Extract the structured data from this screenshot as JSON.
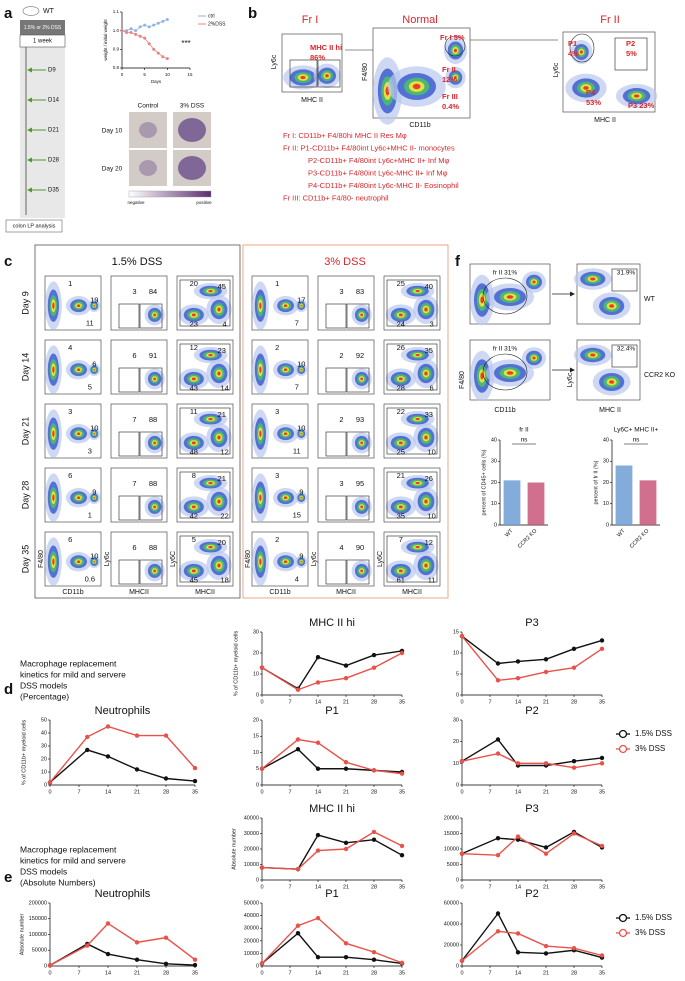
{
  "panel_labels": [
    "a",
    "b",
    "c",
    "d",
    "e",
    "f"
  ],
  "panel_a": {
    "mouse": "WT",
    "treatment": "1.5% or 2% DSS",
    "duration": "1 week",
    "days": [
      "D9",
      "D14",
      "D21",
      "D28",
      "D35"
    ],
    "analysis": "colon LP analysis",
    "histology": {
      "columns": [
        "Control",
        "3% DSS"
      ],
      "rows": [
        "Day 10",
        "Day 20"
      ],
      "scale": [
        "negative",
        "positive"
      ]
    }
  },
  "panel_b": {
    "titles": [
      "Fr I",
      "Normal",
      "Fr II"
    ],
    "gates": [
      "MHC II hi",
      "86%",
      "Fr I 5%",
      "Fr II",
      "12%",
      "Fr III",
      "0.4%",
      "P1",
      "4%",
      "P2",
      "5%",
      "P4",
      "53%",
      "P3 23%"
    ],
    "axes": [
      "Ly6c",
      "MHC II",
      "F4/80",
      "CD11b",
      "Ly6c",
      "MHC II"
    ],
    "legend": [
      "Fr I: CD11b+ F4/80hi MHC II Res Mφ",
      "Fr II:  P1-CD11b+ F4/80int Ly6c+MHC II- monocytes",
      "P2-CD11b+ F4/80int Ly6c+MHC II+ Inf Mφ",
      "P3-CD11b+ F4/80int Ly6c-MHC II+ Inf Mφ",
      "P4-CD11b+ F4/80int Ly6c-MHC II- Eosinophil",
      "Fr III: CD11b+ F4/80- neutrophil"
    ]
  },
  "panel_c": {
    "headers": [
      "1.5% DSS",
      "3% DSS"
    ],
    "rows": [
      "Day 9",
      "Day 14",
      "Day 21",
      "Day 28",
      "Day 35"
    ],
    "axes": {
      "left": [
        "F4/80",
        "Ly6c",
        "Ly6C"
      ],
      "bottom": [
        "CD11b",
        "MHCII",
        "MHCII"
      ]
    },
    "groups": [
      [
        [
          [
            1,
            19,
            11
          ],
          [
            3,
            84
          ],
          [
            20,
            45,
            23,
            4
          ]
        ],
        [
          [
            4,
            6,
            5
          ],
          [
            6,
            91
          ],
          [
            12,
            23,
            43,
            14
          ]
        ],
        [
          [
            3,
            10,
            3
          ],
          [
            7,
            88
          ],
          [
            11,
            21,
            48,
            12
          ]
        ],
        [
          [
            6,
            9,
            1
          ],
          [
            7,
            88
          ],
          [
            8,
            21,
            42,
            22
          ]
        ],
        [
          [
            6,
            10,
            0.6
          ],
          [
            6,
            88
          ],
          [
            5,
            20,
            45,
            18
          ]
        ]
      ],
      [
        [
          [
            1,
            17,
            7
          ],
          [
            3,
            83
          ],
          [
            25,
            40,
            24,
            3
          ]
        ],
        [
          [
            2,
            10,
            7
          ],
          [
            2,
            92
          ],
          [
            26,
            35,
            28,
            6
          ]
        ],
        [
          [
            3,
            10,
            11
          ],
          [
            2,
            93
          ],
          [
            22,
            33,
            25,
            10
          ]
        ],
        [
          [
            3,
            9,
            15
          ],
          [
            3,
            95
          ],
          [
            21,
            26,
            35,
            10
          ]
        ],
        [
          [
            2,
            9,
            4
          ],
          [
            4,
            90
          ],
          [
            7,
            12,
            61,
            11
          ]
        ]
      ]
    ]
  },
  "panel_d": {
    "description": [
      "Macrophage replacement",
      "kinetics for mild and servere",
      "DSS models",
      "(Percentage)"
    ]
  },
  "panel_e": {
    "description": [
      "Macrophage replacement",
      "kinetics for mild and servere",
      "DSS models",
      "(Absolute Numbers)"
    ]
  },
  "panel_f": {
    "gates": [
      "fr II 31%",
      "31.9%",
      "fr II 31%",
      "32.4%"
    ],
    "genotypes": [
      "WT",
      "CCR2 KO"
    ],
    "axes": [
      "F4/80",
      "CD11b",
      "Ly6c",
      "MHC II"
    ]
  },
  "chart_data": [
    {
      "type": "line",
      "ylabel": "weight / initial weight",
      "xlabel": "Days",
      "annotation": "***",
      "x": [
        0,
        1,
        2,
        3,
        4,
        5,
        6,
        7,
        8,
        9,
        10
      ],
      "xlim": [
        0,
        15
      ],
      "xticks": [
        0,
        5,
        10,
        15
      ],
      "ylim": [
        0.8,
        1.1
      ],
      "yticks": [
        0.8,
        0.9,
        {
          "value": 1,
          "label": "1.0"
        },
        1.1
      ],
      "series": [
        {
          "name": "ctrl",
          "color": "#8fb4e3",
          "values": [
            1,
            1,
            1.01,
            1,
            1.02,
            1.03,
            1.02,
            1.03,
            1.04,
            1.05,
            1.06
          ]
        },
        {
          "name": "2%DSS",
          "color": "#e8847f",
          "values": [
            1,
            0.99,
            0.99,
            0.98,
            0.97,
            0.96,
            0.93,
            0.9,
            0.88,
            0.86,
            0.85
          ]
        }
      ]
    },
    {
      "type": "line",
      "title": "MHC II hi",
      "ylabel": "% of CD11b+ myeloid cells",
      "x": [
        0,
        9,
        14,
        21,
        28,
        35
      ],
      "xlim": [
        0,
        35
      ],
      "xticks": [
        0,
        7,
        14,
        21,
        28,
        35
      ],
      "ylim": [
        0,
        30
      ],
      "yticks": [
        0,
        10,
        20,
        30
      ],
      "series": [
        {
          "name": "1.5% DSS",
          "color": "#111111",
          "values": [
            13,
            3,
            18,
            14,
            19,
            21
          ]
        },
        {
          "name": "3% DSS",
          "color": "#e8524a",
          "values": [
            13,
            2.5,
            6,
            8,
            13,
            20
          ]
        }
      ]
    },
    {
      "type": "line",
      "title": "P3",
      "x": [
        0,
        9,
        14,
        21,
        28,
        35
      ],
      "xlim": [
        0,
        35
      ],
      "xticks": [
        0,
        7,
        14,
        21,
        28,
        35
      ],
      "ylim": [
        0,
        15
      ],
      "yticks": [
        0,
        5,
        10,
        15
      ],
      "series": [
        {
          "name": "1.5% DSS",
          "color": "#111111",
          "values": [
            14,
            7.5,
            8,
            8.5,
            11,
            13
          ]
        },
        {
          "name": "3% DSS",
          "color": "#e8524a",
          "values": [
            14,
            3.5,
            4,
            5.5,
            6.5,
            11
          ]
        }
      ]
    },
    {
      "type": "line",
      "title": "Neutrophils",
      "ylabel": "% of CD11b+ myeloid cells",
      "x": [
        0,
        9,
        14,
        21,
        28,
        35
      ],
      "xlim": [
        0,
        35
      ],
      "xticks": [
        0,
        7,
        14,
        21,
        28,
        35
      ],
      "ylim": [
        0,
        50
      ],
      "yticks": [
        0,
        10,
        20,
        30,
        40,
        50
      ],
      "series": [
        {
          "name": "1.5% DSS",
          "color": "#111111",
          "values": [
            2,
            27,
            22,
            12,
            5,
            3
          ]
        },
        {
          "name": "3% DSS",
          "color": "#e8524a",
          "values": [
            2,
            37,
            45,
            38,
            38,
            13
          ]
        }
      ]
    },
    {
      "type": "line",
      "title": "P1",
      "x": [
        0,
        9,
        14,
        21,
        28,
        35
      ],
      "xlim": [
        0,
        35
      ],
      "xticks": [
        0,
        7,
        14,
        21,
        28,
        35
      ],
      "ylim": [
        0,
        20
      ],
      "yticks": [
        0,
        5,
        10,
        15,
        20
      ],
      "series": [
        {
          "name": "1.5% DSS",
          "color": "#111111",
          "values": [
            5,
            11,
            5,
            5,
            4.5,
            4
          ]
        },
        {
          "name": "3% DSS",
          "color": "#e8524a",
          "values": [
            5,
            14,
            13,
            7,
            4.5,
            3.5
          ]
        }
      ]
    },
    {
      "type": "line",
      "title": "P2",
      "x": [
        0,
        9,
        14,
        21,
        28,
        35
      ],
      "xlim": [
        0,
        35
      ],
      "xticks": [
        0,
        7,
        14,
        21,
        28,
        35
      ],
      "ylim": [
        0,
        30
      ],
      "yticks": [
        0,
        10,
        20,
        30
      ],
      "series": [
        {
          "name": "1.5% DSS",
          "color": "#111111",
          "values": [
            11,
            21,
            9,
            9,
            11,
            12.5
          ]
        },
        {
          "name": "3% DSS",
          "color": "#e8524a",
          "values": [
            11,
            14.5,
            10,
            10,
            8,
            10
          ]
        }
      ]
    },
    {
      "type": "line",
      "title": "MHC II hi",
      "ylabel": "Absolute number",
      "x": [
        0,
        9,
        14,
        21,
        28,
        35
      ],
      "xlim": [
        0,
        35
      ],
      "xticks": [
        0,
        7,
        14,
        21,
        28,
        35
      ],
      "ylim": [
        0,
        40000
      ],
      "yticks": [
        0,
        10000,
        20000,
        30000,
        40000
      ],
      "series": [
        {
          "name": "1.5% DSS",
          "color": "#111111",
          "values": [
            8000,
            7000,
            29000,
            24000,
            26000,
            16000
          ]
        },
        {
          "name": "3% DSS",
          "color": "#e8524a",
          "values": [
            8000,
            7000,
            19000,
            20000,
            31000,
            22000
          ]
        }
      ]
    },
    {
      "type": "line",
      "title": "P3",
      "x": [
        0,
        9,
        14,
        21,
        28,
        35
      ],
      "xlim": [
        0,
        35
      ],
      "xticks": [
        0,
        7,
        14,
        21,
        28,
        35
      ],
      "ylim": [
        0,
        20000
      ],
      "yticks": [
        0,
        5000,
        10000,
        15000,
        20000
      ],
      "series": [
        {
          "name": "1.5% DSS",
          "color": "#111111",
          "values": [
            8500,
            13500,
            13000,
            10500,
            15500,
            10500
          ]
        },
        {
          "name": "3% DSS",
          "color": "#e8524a",
          "values": [
            8500,
            8000,
            14000,
            8500,
            15000,
            11000
          ]
        }
      ]
    },
    {
      "type": "line",
      "title": "Neutrophils",
      "ylabel": "Absolute number",
      "x": [
        0,
        9,
        14,
        21,
        28,
        35
      ],
      "xlim": [
        0,
        35
      ],
      "xticks": [
        0,
        7,
        14,
        21,
        28,
        35
      ],
      "ylim": [
        0,
        200000
      ],
      "yticks": [
        0,
        50000,
        100000,
        150000,
        200000
      ],
      "series": [
        {
          "name": "1.5% DSS",
          "color": "#111111",
          "values": [
            2000,
            70000,
            38000,
            20000,
            7000,
            3000
          ]
        },
        {
          "name": "3% DSS",
          "color": "#e8524a",
          "values": [
            2000,
            65000,
            135000,
            75000,
            90000,
            20000
          ]
        }
      ]
    },
    {
      "type": "line",
      "title": "P1",
      "x": [
        0,
        9,
        14,
        21,
        28,
        35
      ],
      "xlim": [
        0,
        35
      ],
      "xticks": [
        0,
        7,
        14,
        21,
        28,
        35
      ],
      "ylim": [
        0,
        50000
      ],
      "yticks": [
        0,
        10000,
        20000,
        30000,
        40000,
        50000
      ],
      "series": [
        {
          "name": "1.5% DSS",
          "color": "#111111",
          "values": [
            2000,
            26000,
            7000,
            7000,
            5000,
            2000
          ]
        },
        {
          "name": "3% DSS",
          "color": "#e8524a",
          "values": [
            2000,
            32000,
            38000,
            18000,
            11000,
            2500
          ]
        }
      ]
    },
    {
      "type": "line",
      "title": "P2",
      "x": [
        0,
        9,
        14,
        21,
        28,
        35
      ],
      "xlim": [
        0,
        35
      ],
      "xticks": [
        0,
        7,
        14,
        21,
        28,
        35
      ],
      "ylim": [
        0,
        60000
      ],
      "yticks": [
        0,
        20000,
        40000,
        60000
      ],
      "series": [
        {
          "name": "1.5% DSS",
          "color": "#111111",
          "values": [
            5000,
            50000,
            13000,
            12000,
            15000,
            8000
          ]
        },
        {
          "name": "3% DSS",
          "color": "#e8524a",
          "values": [
            5000,
            33000,
            31000,
            19000,
            17000,
            10000
          ]
        }
      ]
    },
    {
      "type": "bar",
      "title": "fr II",
      "ylabel": "percent of CD45+ cells (%)",
      "annotation": "ns",
      "categories": [
        "WT",
        "CCR2 KO"
      ],
      "values": [
        21,
        20
      ],
      "colors": [
        "#6f9ed3",
        "#c9577a"
      ],
      "ylim": [
        0,
        40
      ],
      "yticks": [
        0,
        10,
        20,
        30,
        40
      ]
    },
    {
      "type": "bar",
      "title": "Ly6C+ MHC II+",
      "ylabel": "percent of fr II (%)",
      "annotation": "ns",
      "categories": [
        "WT",
        "CCR2 KO"
      ],
      "values": [
        28,
        21
      ],
      "colors": [
        "#6f9ed3",
        "#c9577a"
      ],
      "ylim": [
        0,
        40
      ],
      "yticks": [
        0,
        10,
        20,
        30,
        40
      ]
    }
  ]
}
